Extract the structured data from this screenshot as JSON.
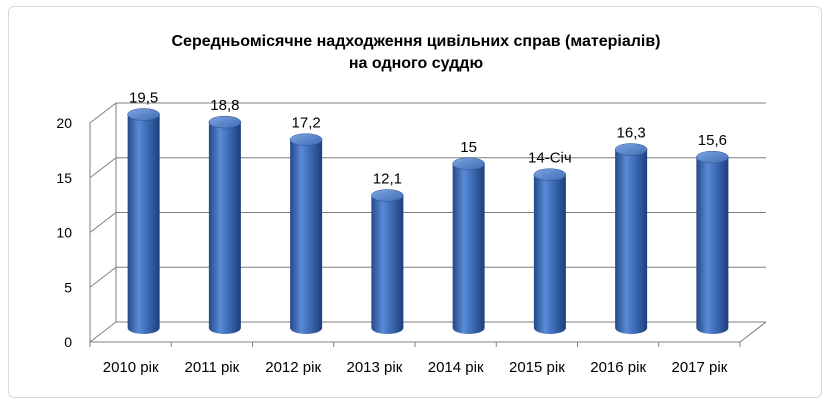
{
  "chart_data": {
    "type": "bar",
    "title_lines": [
      "Середньомісячне  надходження цивільних справ (матеріалів)",
      "на одного суддю"
    ],
    "categories": [
      "2010 рік",
      "2011 рік",
      "2012 рік",
      "2013 рік",
      "2014 рік",
      "2015 рік",
      "2016 рік",
      "2017 рік"
    ],
    "values": [
      19.5,
      18.8,
      17.2,
      12.1,
      15,
      14,
      16.3,
      15.6
    ],
    "data_labels": [
      "19,5",
      "18,8",
      "17,2",
      "12,1",
      "15",
      "14-Січ",
      "16,3",
      "15,6"
    ],
    "y_ticks": [
      "0",
      "5",
      "10",
      "15",
      "20"
    ],
    "ylim": [
      0,
      20
    ],
    "grid": true,
    "style": "3d-cylinder",
    "bar_color": "#3d6bb3"
  }
}
